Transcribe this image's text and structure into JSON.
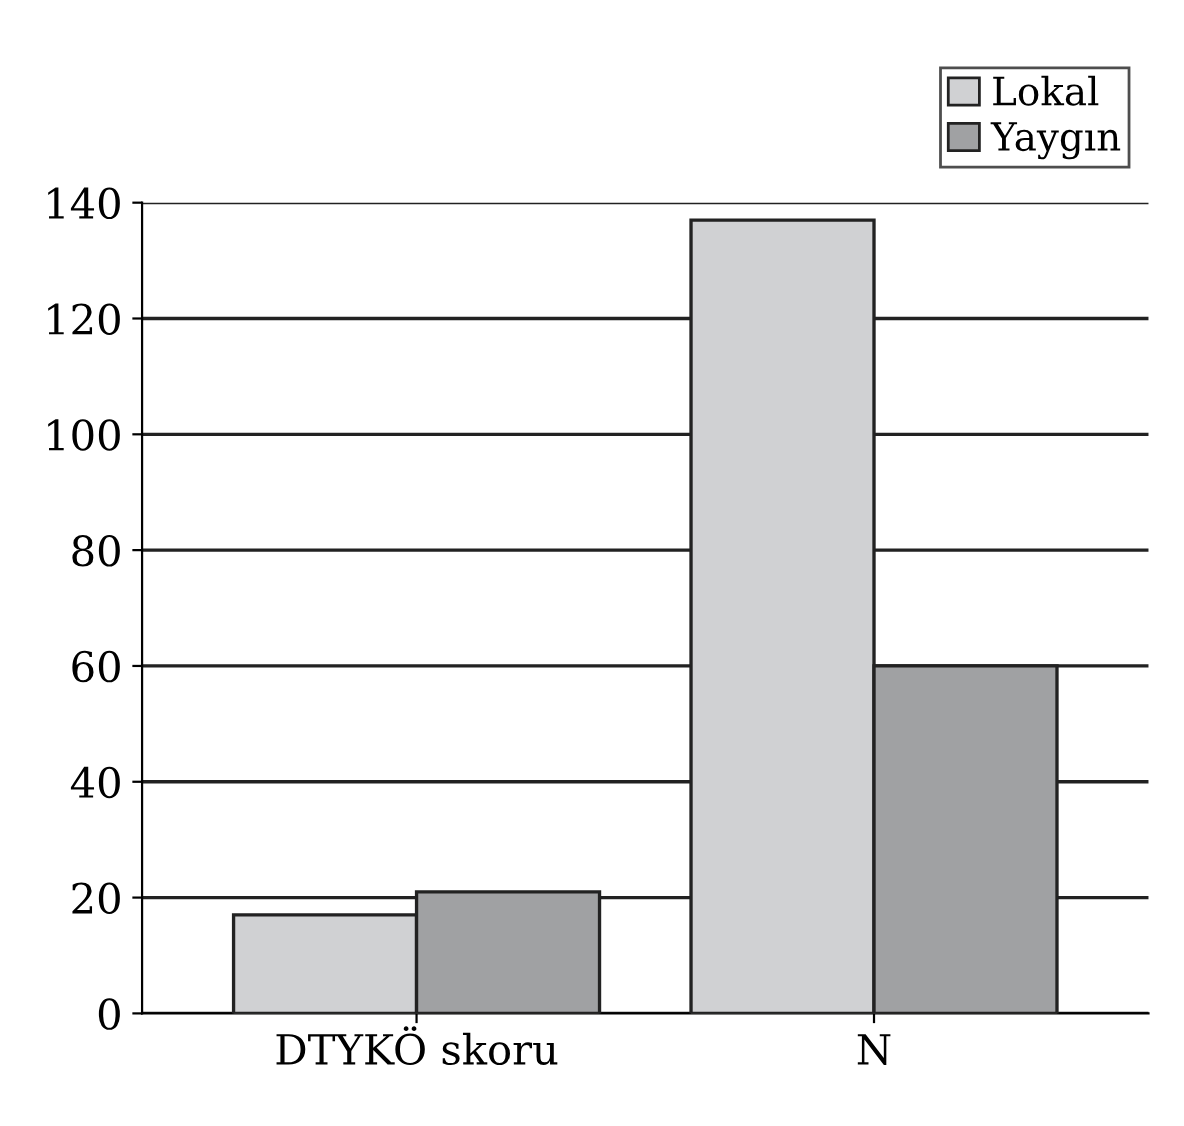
{
  "chart_data": {
    "type": "bar",
    "categories": [
      "DTYKÖ skoru",
      "N"
    ],
    "series": [
      {
        "name": "Lokal",
        "color": "#d0d1d3",
        "values": [
          17,
          137
        ]
      },
      {
        "name": "Yaygın",
        "color": "#a0a1a3",
        "values": [
          21,
          60
        ]
      }
    ],
    "ylim": [
      0,
      140
    ],
    "yticks": [
      0,
      20,
      40,
      60,
      80,
      100,
      120,
      140
    ],
    "grid": "y",
    "legend": "top right"
  }
}
